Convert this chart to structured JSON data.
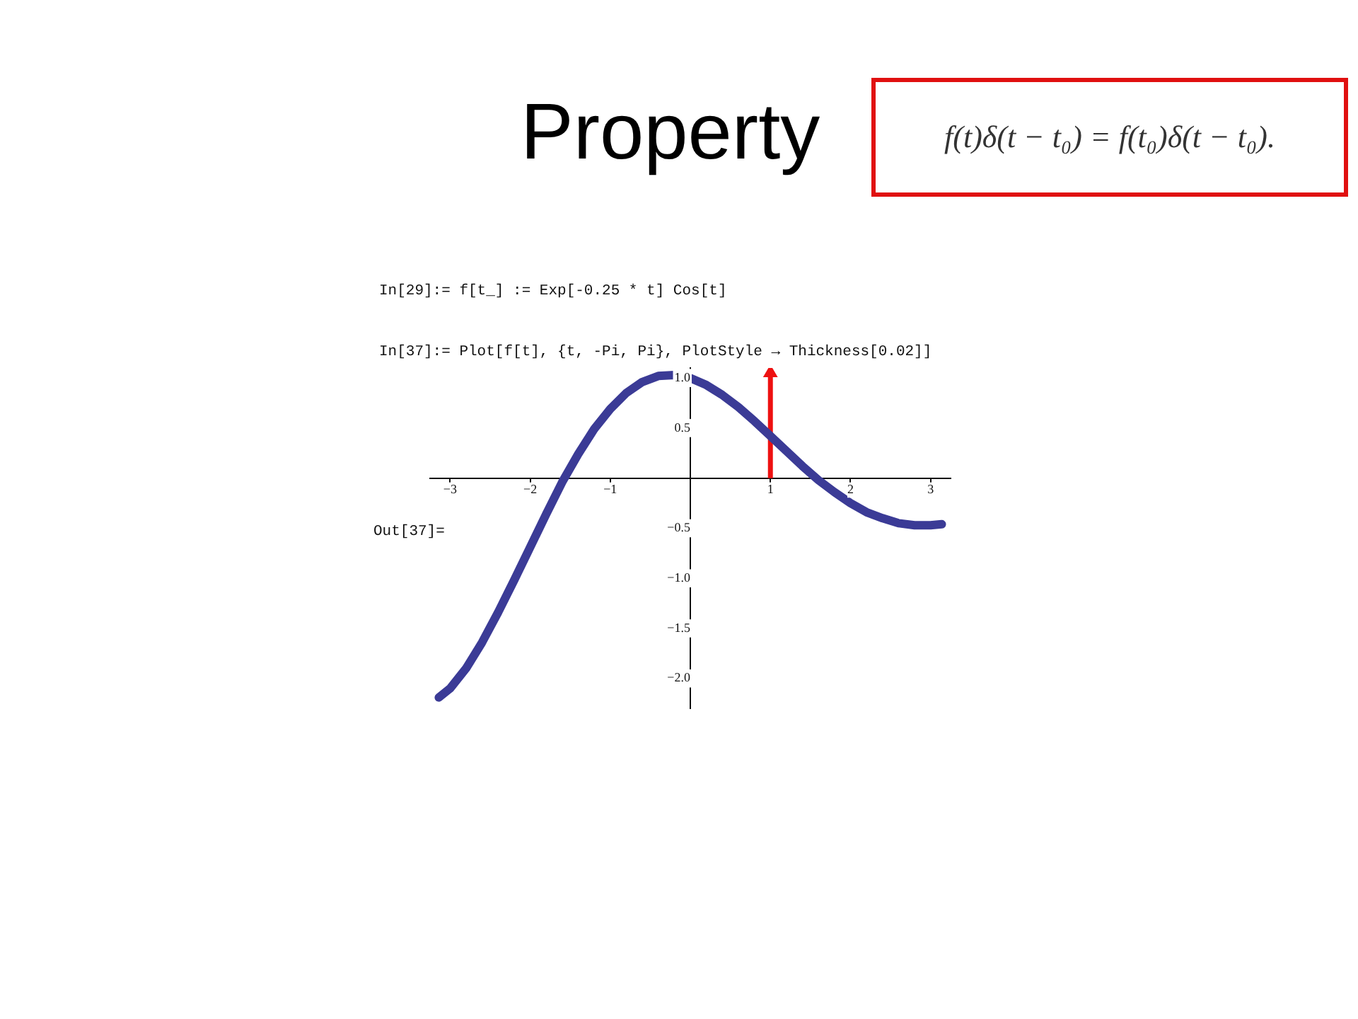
{
  "chart_data": {
    "type": "line",
    "title": "Property",
    "subtitle": "f(t)δ(t − t₀) = f(t₀)δ(t − t₀).",
    "annotations": [
      "In[29]:= f[t_] := Exp[-0.25 * t] Cos[t]",
      "In[37]:= Plot[f[t], {t, -Pi, Pi}, PlotStyle → Thickness[0.02]]",
      "Out[37]="
    ],
    "series": [
      {
        "color": "#3b3b96",
        "x": [
          -3.14,
          -3.0,
          -2.8,
          -2.6,
          -2.4,
          -2.2,
          -2.0,
          -1.8,
          -1.6,
          -1.4,
          -1.2,
          -1.0,
          -0.8,
          -0.6,
          -0.4,
          -0.2,
          0,
          0.2,
          0.4,
          0.6,
          0.8,
          1.0,
          1.2,
          1.4,
          1.6,
          1.8,
          2.0,
          2.2,
          2.4,
          2.6,
          2.8,
          3.0,
          3.14
        ],
        "values": [
          -2.19,
          -2.1,
          -1.9,
          -1.64,
          -1.34,
          -1.02,
          -0.69,
          -0.36,
          -0.04,
          0.24,
          0.49,
          0.69,
          0.85,
          0.96,
          1.02,
          1.03,
          1.0,
          0.93,
          0.83,
          0.71,
          0.57,
          0.42,
          0.27,
          0.12,
          -0.02,
          -0.14,
          -0.25,
          -0.34,
          -0.4,
          -0.45,
          -0.47,
          -0.47,
          -0.46
        ]
      },
      {
        "color": "#ee1111",
        "x": [
          1,
          1
        ],
        "values": [
          0,
          1.05
        ],
        "marker": "triangle"
      }
    ],
    "xlim": [
      -3.25,
      3.25
    ],
    "ylim": [
      -2.3,
      1.1
    ],
    "xticks": [
      {
        "value": -3,
        "label": "−3"
      },
      {
        "value": -2,
        "label": "−2"
      },
      {
        "value": -1,
        "label": "−1"
      },
      1,
      2,
      3
    ],
    "yticks": [
      {
        "value": -2,
        "label": "−2.0"
      },
      {
        "value": -1.5,
        "label": "−1.5"
      },
      {
        "value": -1,
        "label": "−1.0"
      },
      {
        "value": -0.5,
        "label": "−0.5"
      },
      0.5,
      {
        "value": 1,
        "label": "1.0"
      }
    ],
    "grid": false,
    "legend": false
  }
}
